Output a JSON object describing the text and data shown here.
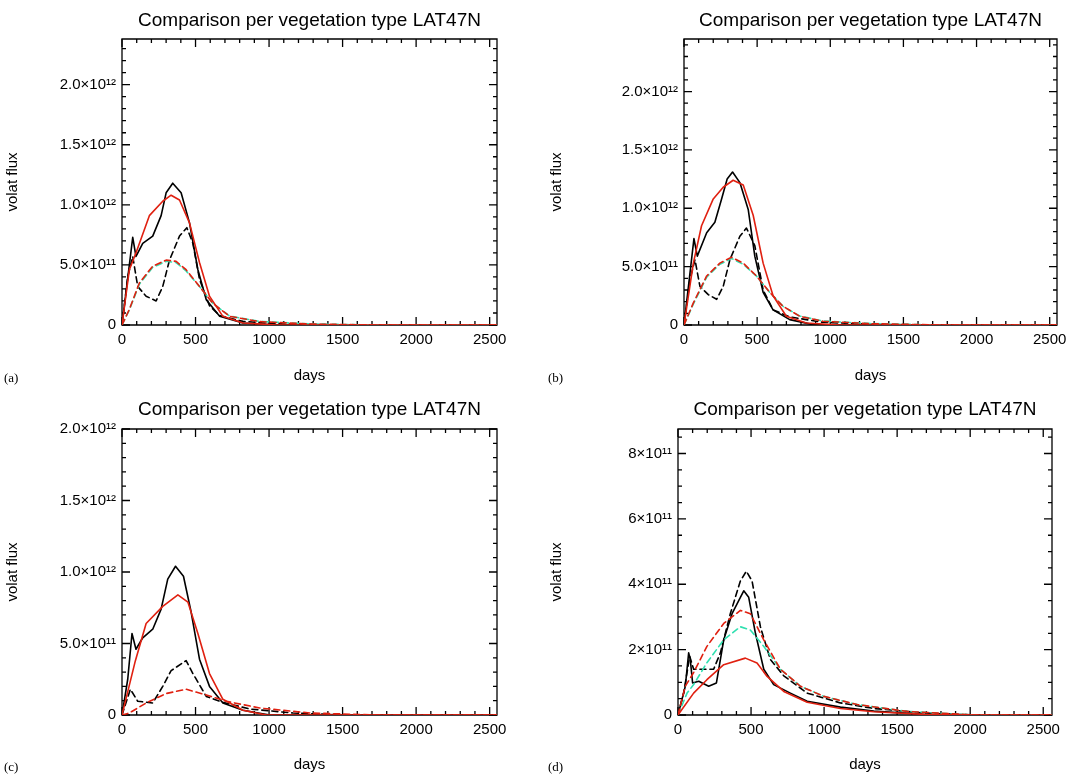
{
  "chart_data": [
    {
      "type": "line",
      "title": "Comparison per vegetation type LAT47N",
      "xlabel": "days",
      "ylabel": "volat flux",
      "annotations": [
        "(a)"
      ],
      "xlim": [
        0,
        2550
      ],
      "xticks": [
        0,
        {
          "value": 100,
          "label": null
        },
        {
          "value": 200,
          "label": null
        },
        {
          "value": 300,
          "label": null
        },
        {
          "value": 400,
          "label": null
        },
        500,
        {
          "value": 600,
          "label": null
        },
        {
          "value": 700,
          "label": null
        },
        {
          "value": 800,
          "label": null
        },
        {
          "value": 900,
          "label": null
        },
        1000,
        {
          "value": 1100,
          "label": null
        },
        {
          "value": 1200,
          "label": null
        },
        {
          "value": 1300,
          "label": null
        },
        {
          "value": 1400,
          "label": null
        },
        1500,
        {
          "value": 1600,
          "label": null
        },
        {
          "value": 1700,
          "label": null
        },
        {
          "value": 1800,
          "label": null
        },
        {
          "value": 1900,
          "label": null
        },
        2000,
        {
          "value": 2100,
          "label": null
        },
        {
          "value": 2200,
          "label": null
        },
        {
          "value": 2300,
          "label": null
        },
        {
          "value": 2400,
          "label": null
        },
        2500
      ],
      "ylim": [
        0,
        2380000000000.0
      ],
      "yticks": [
        {
          "value": 0,
          "label": "0"
        },
        {
          "value": 100000000000.0,
          "label": null
        },
        {
          "value": 200000000000.0,
          "label": null
        },
        {
          "value": 300000000000.0,
          "label": null
        },
        {
          "value": 400000000000.0,
          "label": null
        },
        {
          "value": 500000000000.0,
          "label": "5.0×10¹¹"
        },
        {
          "value": 600000000000.0,
          "label": null
        },
        {
          "value": 700000000000.0,
          "label": null
        },
        {
          "value": 800000000000.0,
          "label": null
        },
        {
          "value": 900000000000.0,
          "label": null
        },
        {
          "value": 1000000000000.0,
          "label": "1.0×10¹²"
        },
        {
          "value": 1100000000000.0,
          "label": null
        },
        {
          "value": 1200000000000.0,
          "label": null
        },
        {
          "value": 1300000000000.0,
          "label": null
        },
        {
          "value": 1400000000000.0,
          "label": null
        },
        {
          "value": 1500000000000.0,
          "label": "1.5×10¹²"
        },
        {
          "value": 1600000000000.0,
          "label": null
        },
        {
          "value": 1700000000000.0,
          "label": null
        },
        {
          "value": 1800000000000.0,
          "label": null
        },
        {
          "value": 1900000000000.0,
          "label": null
        },
        {
          "value": 2000000000000.0,
          "label": "2.0×10¹²"
        },
        {
          "value": 2100000000000.0,
          "label": null
        },
        {
          "value": 2200000000000.0,
          "label": null
        },
        {
          "value": 2300000000000.0,
          "label": null
        }
      ],
      "series": [
        {
          "color": "#e02010",
          "line_style": "solid",
          "x": [
            0,
            50,
            95,
            186,
            277,
            334,
            391,
            459,
            527,
            595,
            686,
            823,
            1050,
            2550
          ],
          "values": [
            0,
            460000000000.0,
            600000000000.0,
            910000000000.0,
            1030000000000.0,
            1080000000000.0,
            1040000000000.0,
            850000000000.0,
            520000000000.0,
            240000000000.0,
            72000000000.0,
            17000000000.0,
            0,
            0
          ]
        },
        {
          "color": "#e02010",
          "line_style": "dashed",
          "x": [
            0,
            50,
            118,
            209,
            300,
            368,
            436,
            527,
            618,
            732,
            936,
            1277,
            1732,
            2550
          ],
          "values": [
            0,
            130000000000.0,
            350000000000.0,
            490000000000.0,
            540000000000.0,
            530000000000.0,
            460000000000.0,
            320000000000.0,
            180000000000.0,
            72000000000.0,
            28000000000.0,
            8000000000.0,
            0,
            0
          ]
        },
        {
          "color": "#30e0b0",
          "line_style": "dashed",
          "x": [
            0,
            50,
            118,
            209,
            300,
            368,
            436,
            527,
            618,
            732,
            936,
            1277,
            1732,
            2550
          ],
          "values": [
            0,
            125000000000.0,
            340000000000.0,
            480000000000.0,
            530000000000.0,
            520000000000.0,
            450000000000.0,
            320000000000.0,
            180000000000.0,
            74000000000.0,
            30000000000.0,
            9000000000.0,
            0,
            0
          ]
        },
        {
          "color": "#000000",
          "line_style": "dashed",
          "x": [
            0,
            39,
            73,
            107,
            164,
            232,
            277,
            323,
            391,
            441,
            482,
            527,
            595,
            664,
            823,
            1050,
            1505,
            2550
          ],
          "values": [
            0,
            400000000000.0,
            570000000000.0,
            320000000000.0,
            240000000000.0,
            200000000000.0,
            320000000000.0,
            540000000000.0,
            740000000000.0,
            810000000000.0,
            680000000000.0,
            380000000000.0,
            160000000000.0,
            78000000000.0,
            30000000000.0,
            11000000000.0,
            0,
            0
          ]
        },
        {
          "color": "#000000",
          "line_style": "solid",
          "x": [
            0,
            73,
            95,
            141,
            209,
            266,
            300,
            345,
            402,
            459,
            516,
            573,
            664,
            823,
            1050,
            2550
          ],
          "values": [
            0,
            730000000000.0,
            570000000000.0,
            680000000000.0,
            740000000000.0,
            910000000000.0,
            1100000000000.0,
            1180000000000.0,
            1100000000000.0,
            850000000000.0,
            460000000000.0,
            210000000000.0,
            72000000000.0,
            17000000000.0,
            0,
            0
          ]
        }
      ]
    },
    {
      "type": "line",
      "title": "Comparison per vegetation type LAT47N",
      "xlabel": "days",
      "ylabel": "volat flux",
      "annotations": [
        "(b)"
      ],
      "xlim": [
        0,
        2550
      ],
      "xticks": [
        0,
        {
          "value": 100,
          "label": null
        },
        {
          "value": 200,
          "label": null
        },
        {
          "value": 300,
          "label": null
        },
        {
          "value": 400,
          "label": null
        },
        500,
        {
          "value": 600,
          "label": null
        },
        {
          "value": 700,
          "label": null
        },
        {
          "value": 800,
          "label": null
        },
        {
          "value": 900,
          "label": null
        },
        1000,
        {
          "value": 1100,
          "label": null
        },
        {
          "value": 1200,
          "label": null
        },
        {
          "value": 1300,
          "label": null
        },
        {
          "value": 1400,
          "label": null
        },
        1500,
        {
          "value": 1600,
          "label": null
        },
        {
          "value": 1700,
          "label": null
        },
        {
          "value": 1800,
          "label": null
        },
        {
          "value": 1900,
          "label": null
        },
        2000,
        {
          "value": 2100,
          "label": null
        },
        {
          "value": 2200,
          "label": null
        },
        {
          "value": 2300,
          "label": null
        },
        {
          "value": 2400,
          "label": null
        },
        2500
      ],
      "ylim": [
        0,
        2450000000000.0
      ],
      "yticks": [
        {
          "value": 0,
          "label": "0"
        },
        {
          "value": 100000000000.0,
          "label": null
        },
        {
          "value": 200000000000.0,
          "label": null
        },
        {
          "value": 300000000000.0,
          "label": null
        },
        {
          "value": 400000000000.0,
          "label": null
        },
        {
          "value": 500000000000.0,
          "label": "5.0×10¹¹"
        },
        {
          "value": 600000000000.0,
          "label": null
        },
        {
          "value": 700000000000.0,
          "label": null
        },
        {
          "value": 800000000000.0,
          "label": null
        },
        {
          "value": 900000000000.0,
          "label": null
        },
        {
          "value": 1000000000000.0,
          "label": "1.0×10¹²"
        },
        {
          "value": 1100000000000.0,
          "label": null
        },
        {
          "value": 1200000000000.0,
          "label": null
        },
        {
          "value": 1300000000000.0,
          "label": null
        },
        {
          "value": 1400000000000.0,
          "label": null
        },
        {
          "value": 1500000000000.0,
          "label": "1.5×10¹²"
        },
        {
          "value": 1600000000000.0,
          "label": null
        },
        {
          "value": 1700000000000.0,
          "label": null
        },
        {
          "value": 1800000000000.0,
          "label": null
        },
        {
          "value": 1900000000000.0,
          "label": null
        },
        {
          "value": 2000000000000.0,
          "label": "2.0×10¹²"
        },
        {
          "value": 2100000000000.0,
          "label": null
        },
        {
          "value": 2200000000000.0,
          "label": null
        },
        {
          "value": 2300000000000.0,
          "label": null
        },
        {
          "value": 2400000000000.0,
          "label": null
        }
      ],
      "series": [
        {
          "color": "#e02010",
          "line_style": "solid",
          "x": [
            0,
            64,
            120,
            200,
            268,
            336,
            405,
            473,
            541,
            609,
            700,
            836,
            1064,
            2550
          ],
          "values": [
            0,
            530000000000.0,
            850000000000.0,
            1080000000000.0,
            1180000000000.0,
            1240000000000.0,
            1200000000000.0,
            940000000000.0,
            530000000000.0,
            250000000000.0,
            75000000000.0,
            17000000000.0,
            0,
            0
          ]
        },
        {
          "color": "#e02010",
          "line_style": "dashed",
          "x": [
            0,
            64,
            155,
            245,
            325,
            405,
            495,
            586,
            677,
            791,
            950,
            1291,
            1745,
            2550
          ],
          "values": [
            0,
            190000000000.0,
            420000000000.0,
            530000000000.0,
            580000000000.0,
            530000000000.0,
            420000000000.0,
            280000000000.0,
            160000000000.0,
            75000000000.0,
            32000000000.0,
            11000000000.0,
            0,
            0
          ]
        },
        {
          "color": "#30e0b0",
          "line_style": "dashed",
          "x": [
            0,
            64,
            155,
            245,
            325,
            405,
            495,
            586,
            677,
            791,
            950,
            1291,
            1745,
            2550
          ],
          "values": [
            0,
            180000000000.0,
            410000000000.0,
            520000000000.0,
            570000000000.0,
            520000000000.0,
            420000000000.0,
            280000000000.0,
            160000000000.0,
            77000000000.0,
            34000000000.0,
            12000000000.0,
            0,
            0
          ]
        },
        {
          "color": "#000000",
          "line_style": "dashed",
          "x": [
            0,
            41,
            75,
            109,
            166,
            223,
            268,
            314,
            382,
            427,
            484,
            541,
            609,
            723,
            950,
            1291,
            1745,
            2550
          ],
          "values": [
            0,
            390000000000.0,
            560000000000.0,
            330000000000.0,
            260000000000.0,
            220000000000.0,
            330000000000.0,
            560000000000.0,
            760000000000.0,
            830000000000.0,
            680000000000.0,
            300000000000.0,
            130000000000.0,
            69000000000.0,
            23000000000.0,
            6000000000.0,
            0,
            0
          ]
        },
        {
          "color": "#000000",
          "line_style": "solid",
          "x": [
            0,
            68,
            91,
            155,
            211,
            257,
            295,
            332,
            382,
            439,
            484,
            541,
            609,
            723,
            882,
            1050,
            2550
          ],
          "values": [
            0,
            740000000000.0,
            590000000000.0,
            790000000000.0,
            880000000000.0,
            1080000000000.0,
            1250000000000.0,
            1310000000000.0,
            1220000000000.0,
            990000000000.0,
            590000000000.0,
            280000000000.0,
            130000000000.0,
            46000000000.0,
            3000000000.0,
            0,
            0
          ]
        }
      ]
    },
    {
      "type": "line",
      "title": "Comparison per vegetation type LAT47N",
      "xlabel": "days",
      "ylabel": "volat flux",
      "annotations": [
        "(c)"
      ],
      "xlim": [
        0,
        2550
      ],
      "xticks": [
        0,
        {
          "value": 100,
          "label": null
        },
        {
          "value": 200,
          "label": null
        },
        {
          "value": 300,
          "label": null
        },
        {
          "value": 400,
          "label": null
        },
        500,
        {
          "value": 600,
          "label": null
        },
        {
          "value": 700,
          "label": null
        },
        {
          "value": 800,
          "label": null
        },
        {
          "value": 900,
          "label": null
        },
        1000,
        {
          "value": 1100,
          "label": null
        },
        {
          "value": 1200,
          "label": null
        },
        {
          "value": 1300,
          "label": null
        },
        {
          "value": 1400,
          "label": null
        },
        1500,
        {
          "value": 1600,
          "label": null
        },
        {
          "value": 1700,
          "label": null
        },
        {
          "value": 1800,
          "label": null
        },
        {
          "value": 1900,
          "label": null
        },
        2000,
        {
          "value": 2100,
          "label": null
        },
        {
          "value": 2200,
          "label": null
        },
        {
          "value": 2300,
          "label": null
        },
        {
          "value": 2400,
          "label": null
        },
        2500
      ],
      "ylim": [
        0,
        2000000000000.0
      ],
      "yticks": [
        {
          "value": 0,
          "label": "0"
        },
        {
          "value": 100000000000.0,
          "label": null
        },
        {
          "value": 200000000000.0,
          "label": null
        },
        {
          "value": 300000000000.0,
          "label": null
        },
        {
          "value": 400000000000.0,
          "label": null
        },
        {
          "value": 500000000000.0,
          "label": "5.0×10¹¹"
        },
        {
          "value": 600000000000.0,
          "label": null
        },
        {
          "value": 700000000000.0,
          "label": null
        },
        {
          "value": 800000000000.0,
          "label": null
        },
        {
          "value": 900000000000.0,
          "label": null
        },
        {
          "value": 1000000000000.0,
          "label": "1.0×10¹²"
        },
        {
          "value": 1100000000000.0,
          "label": null
        },
        {
          "value": 1200000000000.0,
          "label": null
        },
        {
          "value": 1300000000000.0,
          "label": null
        },
        {
          "value": 1400000000000.0,
          "label": null
        },
        {
          "value": 1500000000000.0,
          "label": "1.5×10¹²"
        },
        {
          "value": 1600000000000.0,
          "label": null
        },
        {
          "value": 1700000000000.0,
          "label": null
        },
        {
          "value": 1800000000000.0,
          "label": null
        },
        {
          "value": 1900000000000.0,
          "label": null
        },
        {
          "value": 2000000000000.0,
          "label": "2.0×10¹²"
        }
      ],
      "series": [
        {
          "color": "#e02010",
          "line_style": "solid",
          "x": [
            0,
            91,
            164,
            277,
            380,
            448,
            516,
            595,
            686,
            823,
            982,
            2550
          ],
          "values": [
            0,
            380000000000.0,
            640000000000.0,
            760000000000.0,
            840000000000.0,
            790000000000.0,
            570000000000.0,
            290000000000.0,
            110000000000.0,
            33000000000.0,
            0,
            0
          ]
        },
        {
          "color": "#e02010",
          "line_style": "dashed",
          "x": [
            0,
            50,
            164,
            300,
            436,
            573,
            709,
            936,
            1277,
            1732,
            2550
          ],
          "values": [
            0,
            14000000000.0,
            84000000000.0,
            150000000000.0,
            180000000000.0,
            140000000000.0,
            96000000000.0,
            49000000000.0,
            14000000000.0,
            0,
            0
          ]
        },
        {
          "color": "#000000",
          "line_style": "dashed",
          "x": [
            0,
            57,
            107,
            209,
            277,
            334,
            436,
            482,
            573,
            686,
            868,
            1164,
            1505,
            2550
          ],
          "values": [
            0,
            180000000000.0,
            96000000000.0,
            84000000000.0,
            200000000000.0,
            310000000000.0,
            380000000000.0,
            290000000000.0,
            130000000000.0,
            89000000000.0,
            42000000000.0,
            14000000000.0,
            0,
            0
          ]
        },
        {
          "color": "#000000",
          "line_style": "solid",
          "x": [
            0,
            39,
            68,
            95,
            141,
            209,
            266,
            311,
            364,
            418,
            470,
            527,
            595,
            686,
            823,
            1005,
            2550
          ],
          "values": [
            0,
            250000000000.0,
            570000000000.0,
            460000000000.0,
            540000000000.0,
            600000000000.0,
            740000000000.0,
            950000000000.0,
            1040000000000.0,
            970000000000.0,
            720000000000.0,
            390000000000.0,
            200000000000.0,
            84000000000.0,
            33000000000.0,
            0,
            0
          ]
        }
      ]
    },
    {
      "type": "line",
      "title": "Comparison per vegetation type LAT47N",
      "xlabel": "days",
      "ylabel": "volat flux",
      "annotations": [
        "(d)"
      ],
      "xlim": [
        0,
        2560
      ],
      "xticks": [
        0,
        {
          "value": 100,
          "label": null
        },
        {
          "value": 200,
          "label": null
        },
        {
          "value": 300,
          "label": null
        },
        {
          "value": 400,
          "label": null
        },
        500,
        {
          "value": 600,
          "label": null
        },
        {
          "value": 700,
          "label": null
        },
        {
          "value": 800,
          "label": null
        },
        {
          "value": 900,
          "label": null
        },
        1000,
        {
          "value": 1100,
          "label": null
        },
        {
          "value": 1200,
          "label": null
        },
        {
          "value": 1300,
          "label": null
        },
        {
          "value": 1400,
          "label": null
        },
        1500,
        {
          "value": 1600,
          "label": null
        },
        {
          "value": 1700,
          "label": null
        },
        {
          "value": 1800,
          "label": null
        },
        {
          "value": 1900,
          "label": null
        },
        2000,
        {
          "value": 2100,
          "label": null
        },
        {
          "value": 2200,
          "label": null
        },
        {
          "value": 2300,
          "label": null
        },
        {
          "value": 2400,
          "label": null
        },
        2500
      ],
      "ylim": [
        0,
        875000000000.0
      ],
      "yticks": [
        {
          "value": 0,
          "label": "0"
        },
        {
          "value": 50000000000.0,
          "label": null
        },
        {
          "value": 100000000000.0,
          "label": null
        },
        {
          "value": 150000000000.0,
          "label": null
        },
        {
          "value": 200000000000.0,
          "label": "2×10¹¹"
        },
        {
          "value": 250000000000.0,
          "label": null
        },
        {
          "value": 300000000000.0,
          "label": null
        },
        {
          "value": 350000000000.0,
          "label": null
        },
        {
          "value": 400000000000.0,
          "label": "4×10¹¹"
        },
        {
          "value": 450000000000.0,
          "label": null
        },
        {
          "value": 500000000000.0,
          "label": null
        },
        {
          "value": 550000000000.0,
          "label": null
        },
        {
          "value": 600000000000.0,
          "label": "6×10¹¹"
        },
        {
          "value": 650000000000.0,
          "label": null
        },
        {
          "value": 700000000000.0,
          "label": null
        },
        {
          "value": 750000000000.0,
          "label": null
        },
        {
          "value": 800000000000.0,
          "label": "8×10¹¹"
        },
        {
          "value": 850000000000.0,
          "label": null
        }
      ],
      "series": [
        {
          "color": "#e02010",
          "line_style": "solid",
          "x": [
            0,
            107,
            198,
            313,
            461,
            541,
            610,
            724,
            884,
            1112,
            1340,
            1683,
            2025,
            2560
          ],
          "values": [
            0,
            67000000000.0,
            108000000000.0,
            154000000000.0,
            174000000000.0,
            159000000000.0,
            118000000000.0,
            72000000000.0,
            39000000000.0,
            20000000000.0,
            10000000000.0,
            2000000000.0,
            0,
            0
          ]
        },
        {
          "color": "#e02010",
          "line_style": "dashed",
          "x": [
            0,
            50,
            107,
            198,
            313,
            427,
            495,
            587,
            701,
            838,
            998,
            1226,
            1568,
            2025,
            2560
          ],
          "values": [
            0,
            88000000000.0,
            130000000000.0,
            210000000000.0,
            280000000000.0,
            320000000000.0,
            310000000000.0,
            230000000000.0,
            140000000000.0,
            88000000000.0,
            57000000000.0,
            32000000000.0,
            11000000000.0,
            0,
            0
          ]
        },
        {
          "color": "#30e0b0",
          "line_style": "dashed",
          "x": [
            0,
            62,
            107,
            198,
            313,
            427,
            495,
            587,
            701,
            838,
            998,
            1226,
            1568,
            2025,
            2560
          ],
          "values": [
            0,
            67000000000.0,
            93000000000.0,
            160000000000.0,
            230000000000.0,
            270000000000.0,
            260000000000.0,
            210000000000.0,
            140000000000.0,
            88000000000.0,
            57000000000.0,
            32000000000.0,
            11000000000.0,
            0,
            0
          ]
        },
        {
          "color": "#000000",
          "line_style": "dashed",
          "x": [
            0,
            39,
            80,
            107,
            153,
            244,
            290,
            358,
            427,
            468,
            507,
            564,
            632,
            724,
            884,
            1112,
            1340,
            1683,
            2025,
            2560
          ],
          "values": [
            0,
            67000000000.0,
            180000000000.0,
            140000000000.0,
            140000000000.0,
            140000000000.0,
            190000000000.0,
            310000000000.0,
            410000000000.0,
            440000000000.0,
            410000000000.0,
            270000000000.0,
            170000000000.0,
            120000000000.0,
            67000000000.0,
            37000000000.0,
            20000000000.0,
            6000000000.0,
            0,
            0
          ]
        },
        {
          "color": "#000000",
          "line_style": "solid",
          "x": [
            0,
            50,
            73,
            84,
            100,
            142,
            210,
            263,
            313,
            370,
            427,
            450,
            484,
            530,
            587,
            655,
            769,
            884,
            1112,
            1340,
            1683,
            2025,
            2560
          ],
          "values": [
            0,
            88000000000.0,
            190000000000.0,
            170000000000.0,
            98000000000.0,
            103000000000.0,
            88000000000.0,
            98000000000.0,
            230000000000.0,
            310000000000.0,
            360000000000.0,
            380000000000.0,
            360000000000.0,
            250000000000.0,
            140000000000.0,
            93000000000.0,
            67000000000.0,
            42000000000.0,
            24000000000.0,
            12000000000.0,
            2000000000.0,
            0,
            0
          ]
        }
      ]
    }
  ]
}
